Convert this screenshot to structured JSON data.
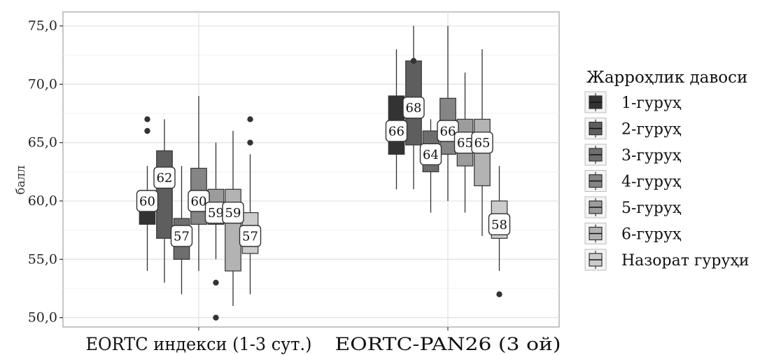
{
  "chart_data": {
    "type": "boxplot",
    "ylabel": "балл",
    "xlabel": "",
    "ylim": [
      49.2,
      76.2
    ],
    "yticks": [
      "50,0",
      "55,0",
      "60,0",
      "65,0",
      "70,0",
      "75,0"
    ],
    "ytick_values": [
      50,
      55,
      60,
      65,
      70,
      75
    ],
    "grid": true,
    "legend_position": "right",
    "legend_title": "Жарроҳлик давоси",
    "categories": [
      "EORTC индекси (1-3 сут.)",
      "EORTC-PAN26 (3 ой)"
    ],
    "series": [
      {
        "name": "1-гуруҳ",
        "color": "#333333",
        "boxes": [
          {
            "whisker_low": 54,
            "q1": 58,
            "median": 60,
            "q3": 60,
            "whisker_high": 63,
            "outliers": [
              66,
              67
            ],
            "label": "60"
          },
          {
            "whisker_low": 61,
            "q1": 64,
            "median": 66,
            "q3": 69,
            "whisker_high": 73,
            "outliers": [],
            "label": "66"
          }
        ]
      },
      {
        "name": "2-гуруҳ",
        "color": "#5e5e5e",
        "boxes": [
          {
            "whisker_low": 53,
            "q1": 56.8,
            "median": 62,
            "q3": 64.3,
            "whisker_high": 67,
            "outliers": [],
            "label": "62"
          },
          {
            "whisker_low": 61,
            "q1": 64.8,
            "median": 68,
            "q3": 72,
            "whisker_high": 75,
            "outliers": [
              72
            ],
            "label": "68"
          }
        ]
      },
      {
        "name": "3-гуруҳ",
        "color": "#6e6e6e",
        "boxes": [
          {
            "whisker_low": 52,
            "q1": 55,
            "median": 57,
            "q3": 58.5,
            "whisker_high": 63,
            "outliers": [],
            "label": "57"
          },
          {
            "whisker_low": 59,
            "q1": 62.5,
            "median": 64,
            "q3": 66,
            "whisker_high": 67,
            "outliers": [],
            "label": "64"
          }
        ]
      },
      {
        "name": "4-гуруҳ",
        "color": "#858585",
        "boxes": [
          {
            "whisker_low": 54,
            "q1": 58,
            "median": 60,
            "q3": 62.8,
            "whisker_high": 69,
            "outliers": [],
            "label": "60"
          },
          {
            "whisker_low": 60,
            "q1": 64,
            "median": 66,
            "q3": 68.8,
            "whisker_high": 75,
            "outliers": [],
            "label": "66"
          }
        ]
      },
      {
        "name": "5-гуруҳ",
        "color": "#9c9c9c",
        "boxes": [
          {
            "whisker_low": 55,
            "q1": 58,
            "median": 59,
            "q3": 61,
            "whisker_high": 65,
            "outliers": [
              53,
              50
            ],
            "label": "59"
          },
          {
            "whisker_low": 59,
            "q1": 63,
            "median": 65,
            "q3": 67,
            "whisker_high": 71,
            "outliers": [],
            "label": "65"
          }
        ]
      },
      {
        "name": "6-гуруҳ",
        "color": "#b3b3b3",
        "boxes": [
          {
            "whisker_low": 51,
            "q1": 54,
            "median": 59,
            "q3": 61,
            "whisker_high": 66,
            "outliers": [],
            "label": "59"
          },
          {
            "whisker_low": 57,
            "q1": 61.3,
            "median": 65,
            "q3": 67,
            "whisker_high": 73,
            "outliers": [],
            "label": "65"
          }
        ]
      },
      {
        "name": "Назорат гуруҳи",
        "color": "#cccccc",
        "boxes": [
          {
            "whisker_low": 52,
            "q1": 55.5,
            "median": 57,
            "q3": 59,
            "whisker_high": 64,
            "outliers": [
              65,
              67
            ],
            "label": "57"
          },
          {
            "whisker_low": 54,
            "q1": 56.8,
            "median": 58,
            "q3": 60,
            "whisker_high": 63,
            "outliers": [
              52
            ],
            "label": "58"
          }
        ]
      }
    ]
  }
}
